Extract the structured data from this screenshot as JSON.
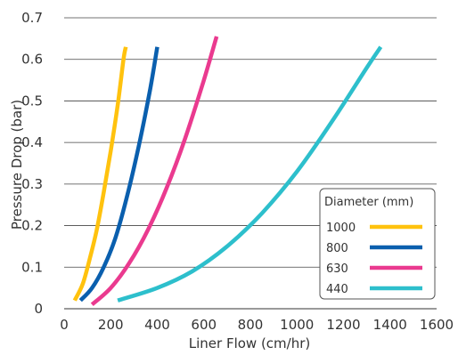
{
  "chart_data": {
    "type": "line",
    "xlabel": "Liner Flow (cm/hr)",
    "ylabel": "Pressure Drop (bar)",
    "xlim": [
      0,
      1600
    ],
    "ylim": [
      0,
      0.7
    ],
    "x_ticks": [
      "0",
      "200",
      "400",
      "600",
      "800",
      "1000",
      "1200",
      "1400",
      "1600"
    ],
    "y_ticks": [
      "0",
      "0.1",
      "0.2",
      "0.3",
      "0.4",
      "0.5",
      "0.6",
      "0.7"
    ],
    "grid": "horizontal",
    "legend": {
      "title": "Diameter (mm)",
      "position": "bottom-right"
    },
    "series": [
      {
        "name": "1000",
        "color": "#FFC20E",
        "x": [
          45,
          80,
          110,
          140,
          170,
          200,
          230,
          255,
          265
        ],
        "y": [
          0.02,
          0.06,
          0.12,
          0.19,
          0.28,
          0.38,
          0.49,
          0.6,
          0.63
        ]
      },
      {
        "name": "800",
        "color": "#0A5FAE",
        "x": [
          70,
          120,
          170,
          220,
          270,
          320,
          370,
          400
        ],
        "y": [
          0.02,
          0.05,
          0.1,
          0.17,
          0.27,
          0.39,
          0.53,
          0.63
        ]
      },
      {
        "name": "630",
        "color": "#EA3A8F",
        "x": [
          120,
          200,
          280,
          360,
          440,
          520,
          600,
          655
        ],
        "y": [
          0.01,
          0.05,
          0.11,
          0.19,
          0.29,
          0.41,
          0.55,
          0.655
        ]
      },
      {
        "name": "440",
        "color": "#2DBFCC",
        "x": [
          230,
          400,
          550,
          700,
          850,
          1000,
          1150,
          1300,
          1360
        ],
        "y": [
          0.02,
          0.05,
          0.09,
          0.15,
          0.23,
          0.33,
          0.45,
          0.58,
          0.63
        ]
      }
    ]
  }
}
